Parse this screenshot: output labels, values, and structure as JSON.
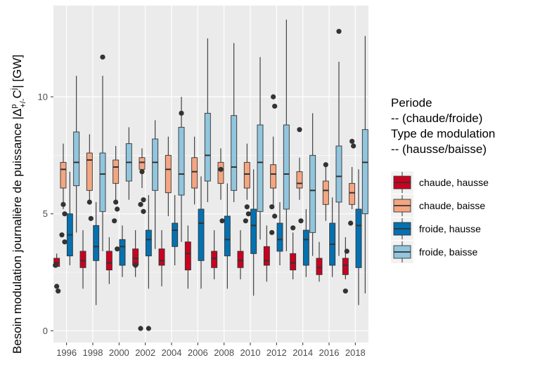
{
  "chart_data": {
    "type": "boxplot",
    "ylabel_prefix": "Besoin modulation journalière de puissance |Δ",
    "ylabel_sub": "+/-",
    "ylabel_sup": "p",
    "ylabel_mid": "C",
    "ylabel_sup2": "j",
    "ylabel_suffix": "| [GW]",
    "ylim": [
      -0.5,
      13.9
    ],
    "yticks": [
      0,
      5,
      10
    ],
    "ytick_labels": [
      "0",
      "5",
      "10"
    ],
    "xtick_labels": [
      "1996",
      "1998",
      "2000",
      "2002",
      "2004",
      "2006",
      "2008",
      "2010",
      "2012",
      "2014",
      "2016",
      "2018"
    ],
    "grid": true,
    "legend": {
      "placement": "right",
      "title_lines": [
        "Periode",
        " -- (chaude/froide)",
        " Type de modulation",
        " -- (hausse/baisse)"
      ],
      "entries": [
        {
          "label": "chaude, hausse",
          "color": "#ca0020"
        },
        {
          "label": "chaude, baisse",
          "color": "#f4a582"
        },
        {
          "label": "froide, hausse",
          "color": "#0571b0"
        },
        {
          "label": "froide, baisse",
          "color": "#92c5de"
        }
      ]
    },
    "series": [
      {
        "name": "chaude, hausse",
        "color": "#ca0020",
        "boxes": [
          {
            "min": 2.7,
            "q1": 2.75,
            "median": 2.9,
            "q3": 3.1,
            "max": 3.3,
            "outliers": [
              1.9,
              1.7,
              2.8
            ]
          },
          {
            "min": 1.8,
            "q1": 2.7,
            "median": 3.0,
            "q3": 3.4,
            "max": 4.3,
            "outliers": []
          },
          {
            "min": 2.0,
            "q1": 2.6,
            "median": 2.9,
            "q3": 3.4,
            "max": 4.0,
            "outliers": []
          },
          {
            "min": 2.3,
            "q1": 2.8,
            "median": 3.1,
            "q3": 3.5,
            "max": 4.3,
            "outliers": [
              2.8
            ]
          },
          {
            "min": 1.9,
            "q1": 2.8,
            "median": 3.0,
            "q3": 3.5,
            "max": 4.3,
            "outliers": []
          },
          {
            "min": 1.8,
            "q1": 2.6,
            "median": 3.3,
            "q3": 3.8,
            "max": 4.5,
            "outliers": []
          },
          {
            "min": 2.2,
            "q1": 2.7,
            "median": 3.1,
            "q3": 3.4,
            "max": 4.3,
            "outliers": []
          },
          {
            "min": 2.2,
            "q1": 2.7,
            "median": 3.0,
            "q3": 3.4,
            "max": 4.3,
            "outliers": []
          },
          {
            "min": 2.1,
            "q1": 2.8,
            "median": 3.0,
            "q3": 3.6,
            "max": 4.5,
            "outliers": []
          },
          {
            "min": 2.2,
            "q1": 2.6,
            "median": 2.9,
            "q3": 3.3,
            "max": 4.2,
            "outliers": [
              4.4
            ]
          },
          {
            "min": 2.1,
            "q1": 2.4,
            "median": 2.7,
            "q3": 3.1,
            "max": 3.8,
            "outliers": []
          },
          {
            "min": 2.2,
            "q1": 2.4,
            "median": 2.8,
            "q3": 3.1,
            "max": 4.0,
            "outliers": [
              1.7,
              3.4
            ]
          }
        ]
      },
      {
        "name": "chaude, baisse",
        "color": "#f4a582",
        "boxes": [
          {
            "min": 5.2,
            "q1": 6.1,
            "median": 6.9,
            "q3": 7.2,
            "max": 8.0,
            "outliers": [
              5.4,
              5.0,
              4.1,
              3.8
            ]
          },
          {
            "min": 5.6,
            "q1": 6.0,
            "median": 7.3,
            "q3": 7.6,
            "max": 8.4,
            "outliers": [
              5.5,
              4.8
            ]
          },
          {
            "min": 5.6,
            "q1": 6.3,
            "median": 7.0,
            "q3": 7.3,
            "max": 7.9,
            "outliers": [
              5.5,
              5.2,
              4.7,
              3.5
            ]
          },
          {
            "min": 6.1,
            "q1": 6.9,
            "median": 7.2,
            "q3": 7.4,
            "max": 7.8,
            "outliers": [
              6.8,
              5.6,
              5.4,
              5.1,
              0.1
            ]
          },
          {
            "min": 4.9,
            "q1": 5.9,
            "median": 6.9,
            "q3": 7.5,
            "max": 8.3,
            "outliers": []
          },
          {
            "min": 5.4,
            "q1": 6.1,
            "median": 6.8,
            "q3": 7.4,
            "max": 8.3,
            "outliers": []
          },
          {
            "min": 5.6,
            "q1": 6.3,
            "median": 6.9,
            "q3": 7.2,
            "max": 7.8,
            "outliers": [
              6.9,
              4.7
            ]
          },
          {
            "min": 5.6,
            "q1": 6.1,
            "median": 6.7,
            "q3": 7.2,
            "max": 8.0,
            "outliers": [
              5.3,
              5.0,
              4.7
            ]
          },
          {
            "min": 5.3,
            "q1": 6.1,
            "median": 6.7,
            "q3": 7.1,
            "max": 8.3,
            "outliers": [
              10.0,
              9.6,
              5.3,
              4.9,
              4.2
            ]
          },
          {
            "min": 5.6,
            "q1": 6.1,
            "median": 6.3,
            "q3": 6.8,
            "max": 7.4,
            "outliers": [
              8.6,
              4.7
            ]
          },
          {
            "min": 4.7,
            "q1": 5.4,
            "median": 6.0,
            "q3": 6.4,
            "max": 7.2,
            "outliers": [
              7.1
            ]
          },
          {
            "min": 5.2,
            "q1": 5.4,
            "median": 5.9,
            "q3": 6.3,
            "max": 7.0,
            "outliers": [
              8.1,
              7.9,
              4.6
            ]
          }
        ]
      },
      {
        "name": "froide, hausse",
        "color": "#0571b0",
        "boxes": [
          {
            "min": 2.8,
            "q1": 3.2,
            "median": 4.1,
            "q3": 5.0,
            "max": 6.8,
            "outliers": []
          },
          {
            "min": 1.1,
            "q1": 3.0,
            "median": 3.6,
            "q3": 4.5,
            "max": 5.5,
            "outliers": []
          },
          {
            "min": 2.3,
            "q1": 2.8,
            "median": 3.6,
            "q3": 3.9,
            "max": 4.5,
            "outliers": []
          },
          {
            "min": 1.8,
            "q1": 3.2,
            "median": 3.9,
            "q3": 4.3,
            "max": 5.8,
            "outliers": [
              0.1
            ]
          },
          {
            "min": 2.8,
            "q1": 3.6,
            "median": 4.3,
            "q3": 4.6,
            "max": 5.8,
            "outliers": []
          },
          {
            "min": 1.8,
            "q1": 3.0,
            "median": 4.6,
            "q3": 5.2,
            "max": 6.6,
            "outliers": []
          },
          {
            "min": 1.8,
            "q1": 3.2,
            "median": 3.9,
            "q3": 4.9,
            "max": 6.3,
            "outliers": []
          },
          {
            "min": 1.5,
            "q1": 3.3,
            "median": 4.5,
            "q3": 5.2,
            "max": 6.9,
            "outliers": []
          },
          {
            "min": 2.8,
            "q1": 3.4,
            "median": 3.9,
            "q3": 4.6,
            "max": 5.5,
            "outliers": []
          },
          {
            "min": 2.3,
            "q1": 2.8,
            "median": 3.9,
            "q3": 4.3,
            "max": 5.2,
            "outliers": []
          },
          {
            "min": 2.3,
            "q1": 2.8,
            "median": 3.7,
            "q3": 4.6,
            "max": 5.7,
            "outliers": []
          },
          {
            "min": 1.1,
            "q1": 2.7,
            "median": 4.5,
            "q3": 5.2,
            "max": 6.9,
            "outliers": []
          }
        ]
      },
      {
        "name": "froide, baisse",
        "color": "#92c5de",
        "boxes": [
          {
            "min": 4.2,
            "q1": 6.2,
            "median": 7.2,
            "q3": 8.5,
            "max": 10.9,
            "outliers": []
          },
          {
            "min": 3.4,
            "q1": 5.1,
            "median": 6.7,
            "q3": 7.6,
            "max": 10.9,
            "outliers": [
              11.7
            ]
          },
          {
            "min": 5.6,
            "q1": 6.4,
            "median": 7.2,
            "q3": 8.0,
            "max": 8.7,
            "outliers": []
          },
          {
            "min": 3.5,
            "q1": 6.0,
            "median": 7.2,
            "q3": 8.2,
            "max": 9.0,
            "outliers": []
          },
          {
            "min": 3.8,
            "q1": 5.8,
            "median": 6.7,
            "q3": 8.7,
            "max": 10.0,
            "outliers": [
              9.3
            ]
          },
          {
            "min": 5.5,
            "q1": 6.4,
            "median": 7.5,
            "q3": 9.3,
            "max": 12.5,
            "outliers": []
          },
          {
            "min": 5.5,
            "q1": 6.0,
            "median": 7.0,
            "q3": 9.2,
            "max": 12.3,
            "outliers": []
          },
          {
            "min": 3.9,
            "q1": 5.1,
            "median": 7.2,
            "q3": 8.8,
            "max": 11.7,
            "outliers": []
          },
          {
            "min": 3.4,
            "q1": 5.2,
            "median": 6.7,
            "q3": 8.8,
            "max": 13.3,
            "outliers": []
          },
          {
            "min": 3.2,
            "q1": 4.2,
            "median": 6.0,
            "q3": 7.5,
            "max": 9.3,
            "outliers": []
          },
          {
            "min": 3.2,
            "q1": 5.5,
            "median": 6.6,
            "q3": 7.9,
            "max": 11.5,
            "outliers": [
              12.8
            ]
          },
          {
            "min": 1.6,
            "q1": 5.0,
            "median": 7.2,
            "q3": 8.6,
            "max": 12.6,
            "outliers": []
          }
        ]
      }
    ]
  }
}
